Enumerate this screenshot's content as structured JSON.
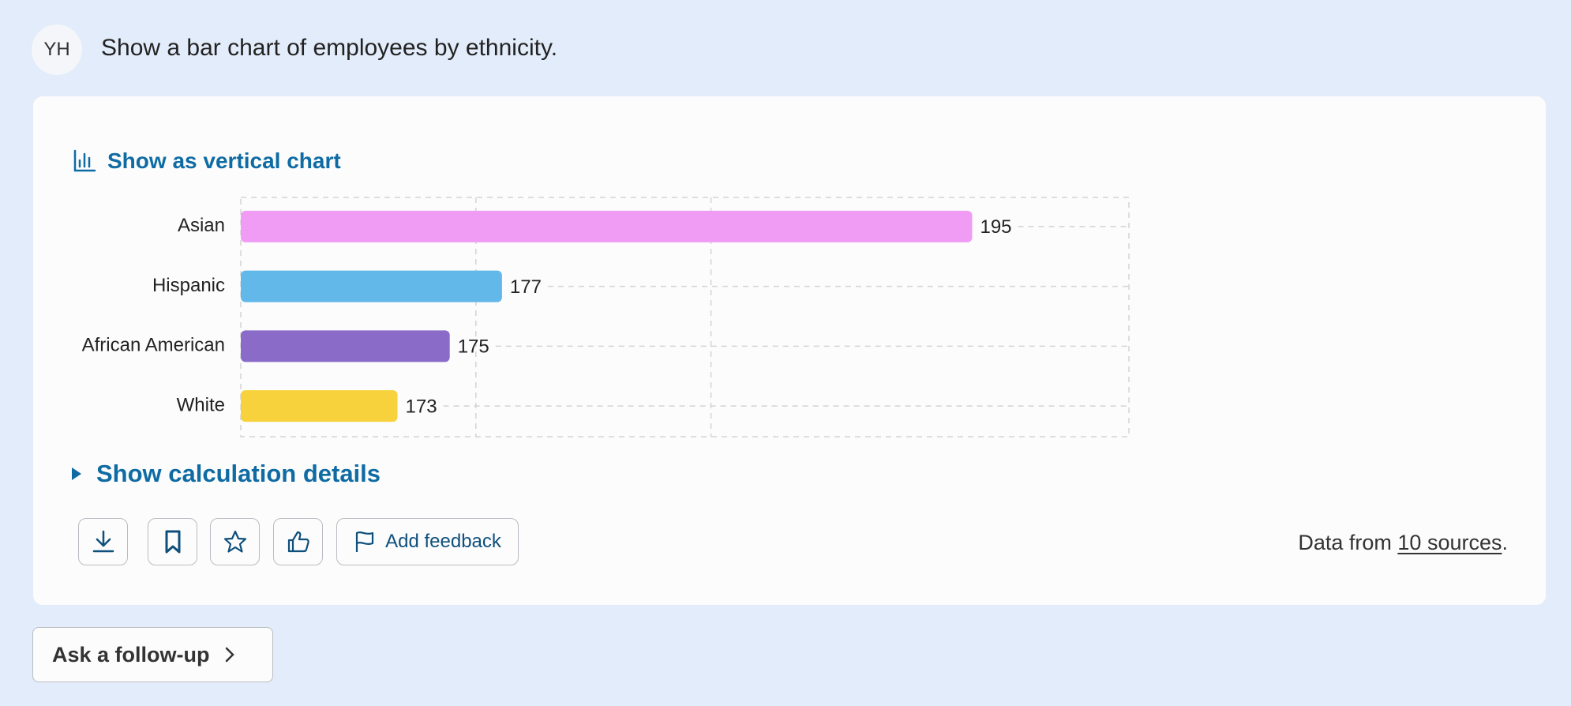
{
  "avatar": "YH",
  "user_message": "Show a bar chart of employees by ethnicity.",
  "chart_toggle": "Show as vertical chart",
  "chart_data": {
    "type": "bar",
    "orientation": "horizontal",
    "categories": [
      "Asian",
      "Hispanic",
      "African American",
      "White"
    ],
    "values": [
      195,
      177,
      175,
      173
    ],
    "colors": [
      "#f09cf5",
      "#63b8ea",
      "#8a6bc8",
      "#f7d23d"
    ],
    "xlim": [
      167,
      201
    ],
    "xticks": [
      176,
      185
    ],
    "grid": true
  },
  "calculation_details": "Show calculation details",
  "feedback_button": "Add feedback",
  "sources": {
    "prefix": "Data from",
    "link": "10 sources",
    "suffix": "."
  },
  "follow_up": "Ask a follow-up"
}
